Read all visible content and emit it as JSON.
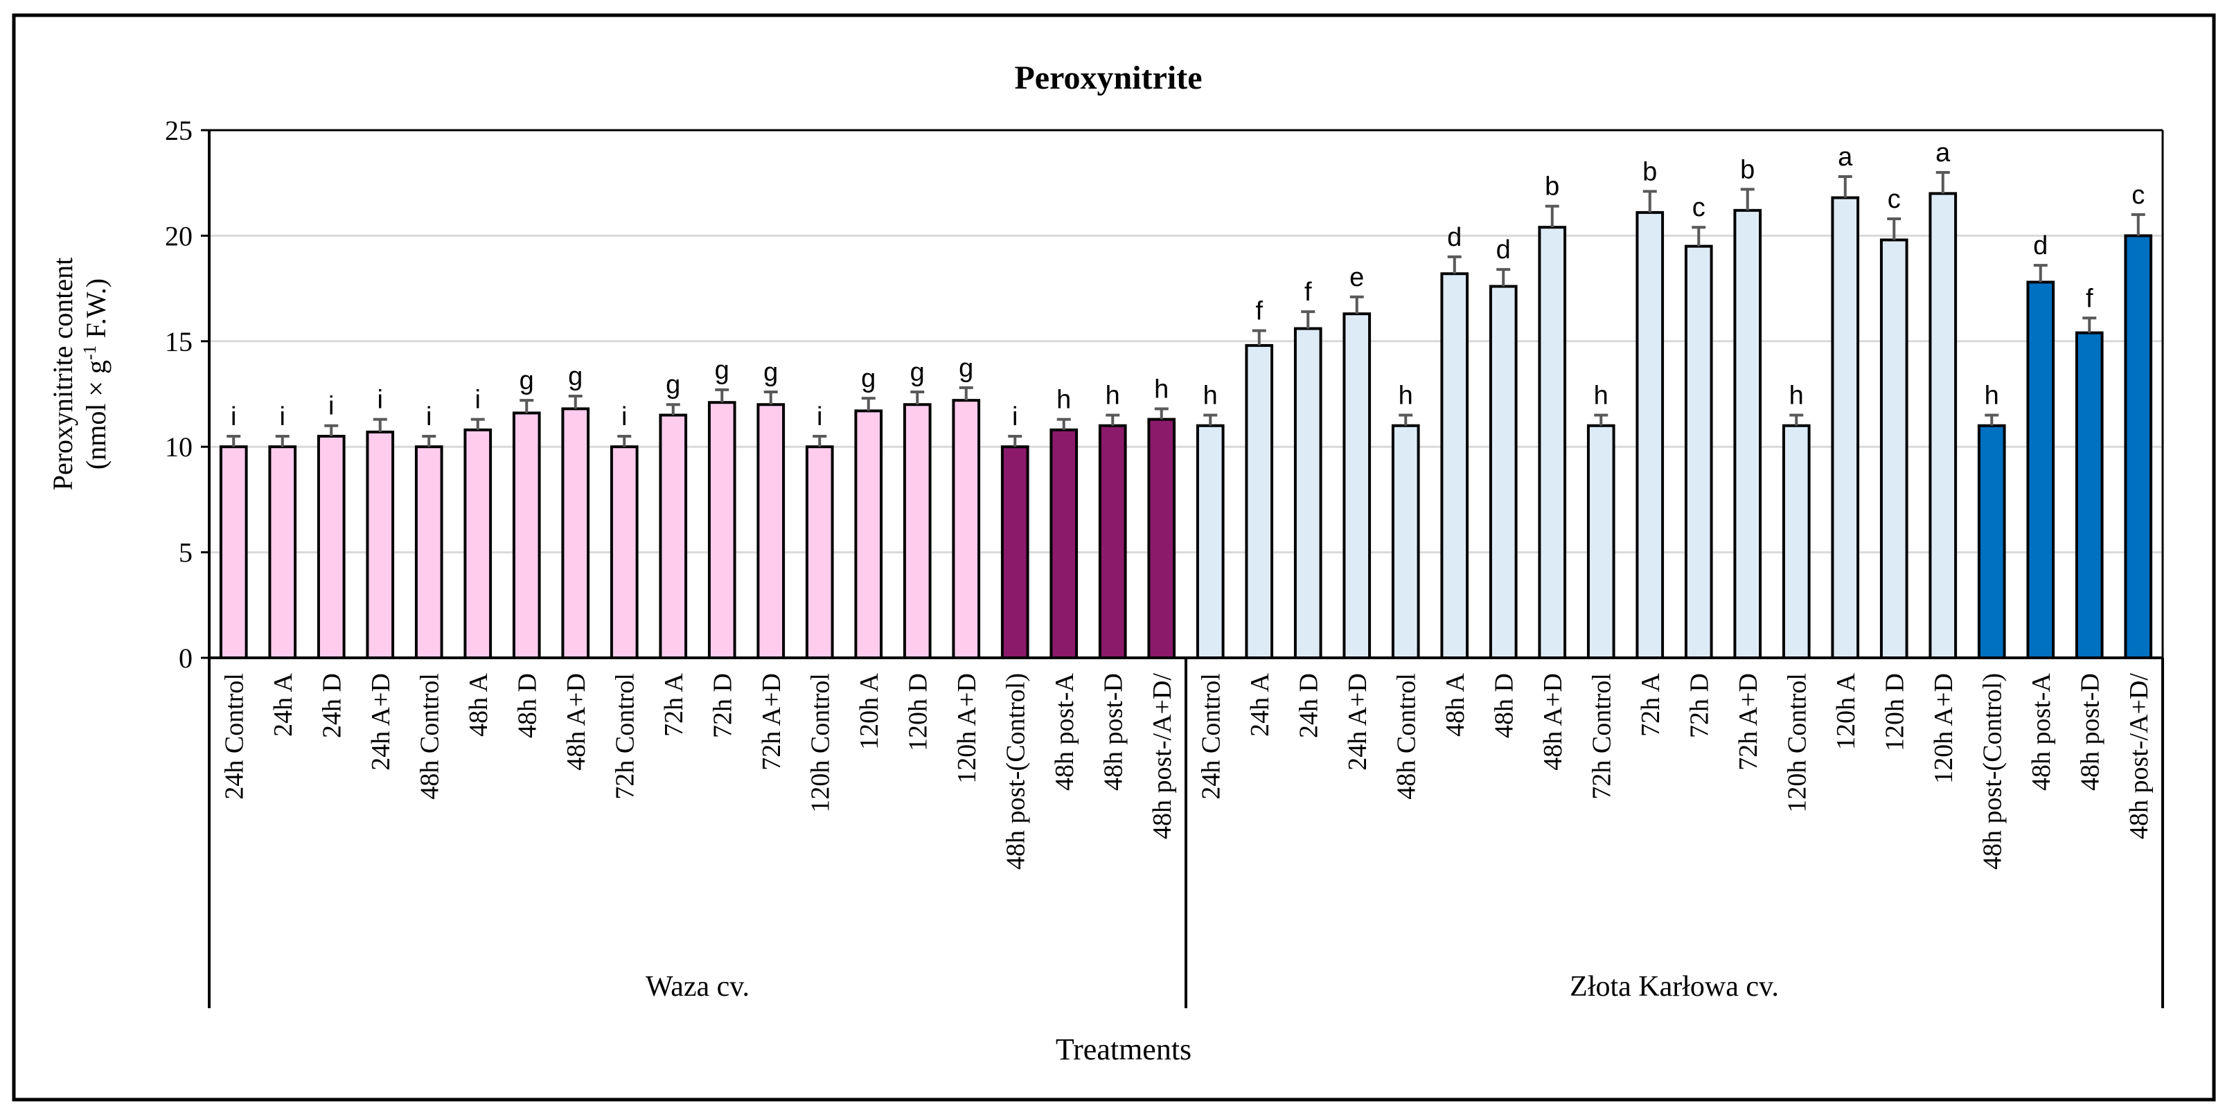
{
  "chart_data": {
    "type": "bar",
    "title": "Peroxynitrite",
    "ylabel_line1": "Peroxynitrite content",
    "ylabel_line2_prefix": "(nmol × g",
    "ylabel_line2_sup": "-1",
    "ylabel_line2_suffix": " F.W.)",
    "xlabel": "Treatments",
    "ylim": [
      0,
      25
    ],
    "yticks": [
      "0",
      "5",
      "10",
      "15",
      "20",
      "25"
    ],
    "grid": true,
    "colors": {
      "waza_light": "#FFCCEE",
      "waza_dark": "#8B1A6B",
      "zlota_light": "#DDEBF7",
      "zlota_dark": "#0070C0",
      "error_bar": "#595959",
      "gridline": "#D9D9D9"
    },
    "groups": [
      {
        "name": "Waza cv.",
        "categories": [
          "24h Control",
          "24h A",
          "24h D",
          "24h A+D",
          "48h Control",
          "48h A",
          "48h D",
          "48h A+D",
          "72h Control",
          "72h A",
          "72h D",
          "72h A+D",
          "120h Control",
          "120h A",
          "120h D",
          "120h A+D",
          "48h post-(Control)",
          "48h post-A",
          "48h post-D",
          "48h post-/A+D/"
        ],
        "values": [
          10.0,
          10.0,
          10.5,
          10.7,
          10.0,
          10.8,
          11.6,
          11.8,
          10.0,
          11.5,
          12.1,
          12.0,
          10.0,
          11.7,
          12.0,
          12.2,
          10.0,
          10.8,
          11.0,
          11.3
        ],
        "errors": [
          0.5,
          0.5,
          0.5,
          0.6,
          0.5,
          0.5,
          0.6,
          0.6,
          0.5,
          0.5,
          0.6,
          0.6,
          0.5,
          0.6,
          0.6,
          0.6,
          0.5,
          0.5,
          0.5,
          0.5
        ],
        "letters": [
          "i",
          "i",
          "i",
          "i",
          "i",
          "i",
          "g",
          "g",
          "i",
          "g",
          "g",
          "g",
          "i",
          "g",
          "g",
          "g",
          "i",
          "h",
          "h",
          "h"
        ],
        "dark": [
          false,
          false,
          false,
          false,
          false,
          false,
          false,
          false,
          false,
          false,
          false,
          false,
          false,
          false,
          false,
          false,
          true,
          true,
          true,
          true
        ]
      },
      {
        "name": "Złota Karłowa cv.",
        "categories": [
          "24h Control",
          "24h A",
          "24h D",
          "24h A+D",
          "48h Control",
          "48h A",
          "48h D",
          "48h A+D",
          "72h Control",
          "72h A",
          "72h D",
          "72h A+D",
          "120h Control",
          "120h A",
          "120h D",
          "120h A+D",
          "48h post-(Control)",
          "48h post-A",
          "48h post-D",
          "48h post-/A+D/"
        ],
        "values": [
          11.0,
          14.8,
          15.6,
          16.3,
          11.0,
          18.2,
          17.6,
          20.4,
          11.0,
          21.1,
          19.5,
          21.2,
          11.0,
          21.8,
          19.8,
          22.0,
          11.0,
          17.8,
          15.4,
          20.0
        ],
        "errors": [
          0.5,
          0.7,
          0.8,
          0.8,
          0.5,
          0.8,
          0.8,
          1.0,
          0.5,
          1.0,
          0.9,
          1.0,
          0.5,
          1.0,
          1.0,
          1.0,
          0.5,
          0.8,
          0.7,
          1.0
        ],
        "letters": [
          "h",
          "f",
          "f",
          "e",
          "h",
          "d",
          "d",
          "b",
          "h",
          "b",
          "c",
          "b",
          "h",
          "a",
          "c",
          "a",
          "h",
          "d",
          "f",
          "c"
        ],
        "dark": [
          false,
          false,
          false,
          false,
          false,
          false,
          false,
          false,
          false,
          false,
          false,
          false,
          false,
          false,
          false,
          false,
          true,
          true,
          true,
          true
        ]
      }
    ]
  }
}
